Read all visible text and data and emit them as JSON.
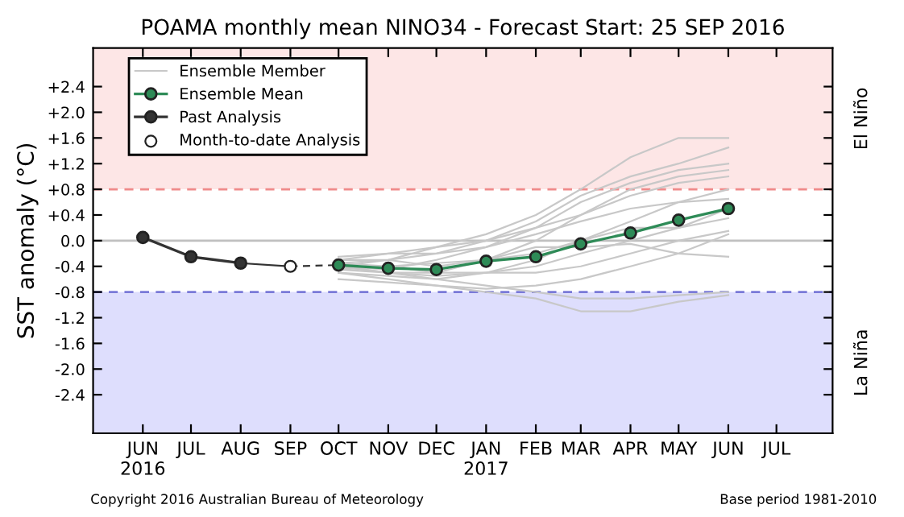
{
  "chart_data": {
    "type": "line",
    "title": "POAMA monthly mean NINO34 - Forecast Start: 25 SEP 2016",
    "ylabel": "SST anomaly (°C)",
    "x": [
      "2016-10",
      "2016-11",
      "2016-12",
      "2017-01",
      "2017-02",
      "2017-03",
      "2017-04",
      "2017-05",
      "2017-06"
    ],
    "xlim": [
      "2016-05-01",
      "2017-08-05"
    ],
    "xticks": [
      {
        "value": "2016-06",
        "label": "JUN\n2016"
      },
      {
        "value": "2016-07",
        "label": "JUL"
      },
      {
        "value": "2016-08",
        "label": "AUG"
      },
      {
        "value": "2016-09",
        "label": "SEP"
      },
      {
        "value": "2016-10",
        "label": "OCT"
      },
      {
        "value": "2016-11",
        "label": "NOV"
      },
      {
        "value": "2016-12",
        "label": "DEC"
      },
      {
        "value": "2017-01",
        "label": "JAN\n2017"
      },
      {
        "value": "2017-02",
        "label": "FEB"
      },
      {
        "value": "2017-03",
        "label": "MAR"
      },
      {
        "value": "2017-04",
        "label": "APR"
      },
      {
        "value": "2017-05",
        "label": "MAY"
      },
      {
        "value": "2017-06",
        "label": "JUN"
      },
      {
        "value": "2017-07",
        "label": "JUL"
      }
    ],
    "ylim": [
      -3.0,
      3.0
    ],
    "yticks": [
      {
        "value": 2.4,
        "label": "+2.4"
      },
      {
        "value": 2.0,
        "label": "+2.0"
      },
      {
        "value": 1.6,
        "label": "+1.6"
      },
      {
        "value": 1.2,
        "label": "+1.2"
      },
      {
        "value": 0.8,
        "label": "+0.8"
      },
      {
        "value": 0.4,
        "label": "+0.4"
      },
      {
        "value": 0.0,
        "label": "0.0"
      },
      {
        "value": -0.4,
        "label": "-0.4"
      },
      {
        "value": -0.8,
        "label": "-0.8"
      },
      {
        "value": -1.2,
        "label": "-1.2"
      },
      {
        "value": -1.6,
        "label": "-1.6"
      },
      {
        "value": -2.0,
        "label": "-2.0"
      },
      {
        "value": -2.4,
        "label": "-2.4"
      }
    ],
    "grid": false,
    "legend": "top left",
    "bands": [
      {
        "axis": "y",
        "from": 0.8,
        "to": 3.0,
        "label": "El Niño",
        "color": "#fde6e6"
      },
      {
        "axis": "y",
        "from": -3.0,
        "to": -0.8,
        "label": "La Niña",
        "color": "#dedefd"
      }
    ],
    "ref_lines": [
      {
        "axis": "y",
        "value": 0.8,
        "color": "#f08a8a",
        "line_style": "dashed"
      },
      {
        "axis": "y",
        "value": -0.8,
        "color": "#7a7ad8",
        "line_style": "dashed"
      },
      {
        "axis": "y",
        "value": 0.0,
        "color": "#c0c0c0",
        "line_style": "solid"
      }
    ],
    "series": [
      {
        "name": "Ensemble Member",
        "color": "#c8c8c8",
        "marker": "none",
        "values": [
          -0.4,
          -0.3,
          -0.1,
          0.1,
          0.4,
          0.8,
          1.3,
          1.6,
          1.6
        ]
      },
      {
        "color": "#c8c8c8",
        "marker": "none",
        "values": [
          -0.35,
          -0.3,
          -0.2,
          0.0,
          0.3,
          0.7,
          1.0,
          1.2,
          1.45
        ]
      },
      {
        "color": "#c8c8c8",
        "marker": "none",
        "values": [
          -0.4,
          -0.45,
          -0.3,
          -0.1,
          0.2,
          0.6,
          0.9,
          1.1,
          1.2
        ]
      },
      {
        "color": "#c8c8c8",
        "marker": "none",
        "values": [
          -0.45,
          -0.5,
          -0.5,
          -0.3,
          0.0,
          0.4,
          0.8,
          1.0,
          1.1
        ]
      },
      {
        "color": "#c8c8c8",
        "marker": "none",
        "values": [
          -0.3,
          -0.2,
          -0.1,
          0.0,
          0.2,
          0.4,
          0.7,
          0.9,
          1.0
        ]
      },
      {
        "color": "#c8c8c8",
        "marker": "none",
        "values": [
          -0.5,
          -0.55,
          -0.6,
          -0.5,
          -0.3,
          0.0,
          0.3,
          0.6,
          0.8
        ]
      },
      {
        "color": "#c8c8c8",
        "marker": "none",
        "values": [
          -0.4,
          -0.5,
          -0.55,
          -0.5,
          -0.4,
          -0.2,
          0.0,
          0.2,
          0.5
        ]
      },
      {
        "color": "#c8c8c8",
        "marker": "none",
        "values": [
          -0.35,
          -0.4,
          -0.5,
          -0.5,
          -0.5,
          -0.4,
          -0.2,
          0.0,
          0.15
        ]
      },
      {
        "color": "#c8c8c8",
        "marker": "none",
        "values": [
          -0.6,
          -0.65,
          -0.7,
          -0.75,
          -0.7,
          -0.6,
          -0.4,
          -0.2,
          0.1
        ]
      },
      {
        "color": "#c8c8c8",
        "marker": "none",
        "values": [
          -0.5,
          -0.6,
          -0.7,
          -0.8,
          -0.9,
          -1.1,
          -1.1,
          -0.95,
          -0.85
        ]
      },
      {
        "color": "#c8c8c8",
        "marker": "none",
        "values": [
          -0.4,
          -0.5,
          -0.6,
          -0.7,
          -0.8,
          -0.9,
          -0.9,
          -0.85,
          -0.8
        ]
      },
      {
        "color": "#c8c8c8",
        "marker": "none",
        "values": [
          -0.3,
          -0.3,
          -0.4,
          -0.3,
          -0.2,
          0.0,
          0.2,
          0.2,
          0.35
        ]
      },
      {
        "color": "#c8c8c8",
        "marker": "none",
        "values": [
          -0.45,
          -0.4,
          -0.35,
          -0.3,
          -0.1,
          -0.1,
          -0.05,
          -0.2,
          -0.25
        ]
      },
      {
        "color": "#c8c8c8",
        "marker": "none",
        "values": [
          -0.25,
          -0.2,
          -0.2,
          -0.1,
          0.1,
          0.3,
          0.5,
          0.6,
          0.65
        ]
      },
      {
        "name": "Ensemble Mean",
        "color": "#2e8b57",
        "marker": "circle",
        "values": [
          -0.38,
          -0.43,
          -0.45,
          -0.32,
          -0.25,
          -0.05,
          0.12,
          0.32,
          0.5
        ]
      },
      {
        "name": "Past Analysis",
        "color": "#333333",
        "marker": "circle",
        "x": [
          "2016-06",
          "2016-07",
          "2016-08"
        ],
        "values": [
          0.05,
          -0.25,
          -0.35
        ]
      },
      {
        "color": "#333333",
        "marker": "none",
        "x": [
          "2016-08",
          "2016-09"
        ],
        "values": [
          -0.35,
          -0.4
        ]
      },
      {
        "color": "#333333",
        "marker": "none",
        "line_style": "dashed",
        "x": [
          "2016-09",
          "2016-10"
        ],
        "values": [
          -0.4,
          -0.38
        ]
      },
      {
        "name": "Month-to-date Analysis",
        "type": "scatter",
        "color": "#ffffff",
        "marker": "circle",
        "x": [
          "2016-09"
        ],
        "values": [
          -0.4
        ]
      }
    ],
    "annotations": [
      "Copyright 2016 Australian Bureau of Meteorology",
      "Base period 1981-2010"
    ]
  }
}
